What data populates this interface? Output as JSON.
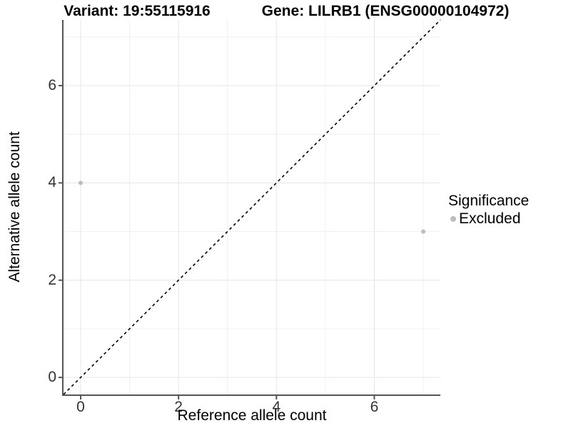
{
  "header": {
    "left_title": "Variant: 19:55115916",
    "right_title": "Gene: LILRB1 (ENSG00000104972)"
  },
  "chart_data": {
    "type": "scatter",
    "title": "Variant: 19:55115916 | Gene: LILRB1 (ENSG00000104972)",
    "xlabel": "Reference allele count",
    "ylabel": "Alternative allele count",
    "xlim": [
      -0.35,
      7.35
    ],
    "ylim": [
      -0.35,
      7.35
    ],
    "xticks": [
      0,
      2,
      4,
      6
    ],
    "yticks": [
      0,
      2,
      4,
      6
    ],
    "minor_ticks": [
      1,
      3,
      5,
      7
    ],
    "grid": true,
    "series": [
      {
        "name": "Excluded",
        "color": "#bdbdbd",
        "points": [
          {
            "x": 0,
            "y": 4
          },
          {
            "x": 7,
            "y": 3
          }
        ]
      }
    ],
    "identity_line": {
      "slope": 1,
      "intercept": 0,
      "style": "dashed",
      "color": "#000000"
    },
    "legend": {
      "title": "Significance",
      "position": "right",
      "items": [
        {
          "label": "Excluded",
          "color": "#bdbdbd"
        }
      ]
    },
    "style_colors": {
      "axis_line": "#555555",
      "tick_mark": "#555555",
      "grid_major": "#e5e5e5",
      "grid_minor": "#f0f0f0",
      "tick_text": "#333333"
    }
  }
}
